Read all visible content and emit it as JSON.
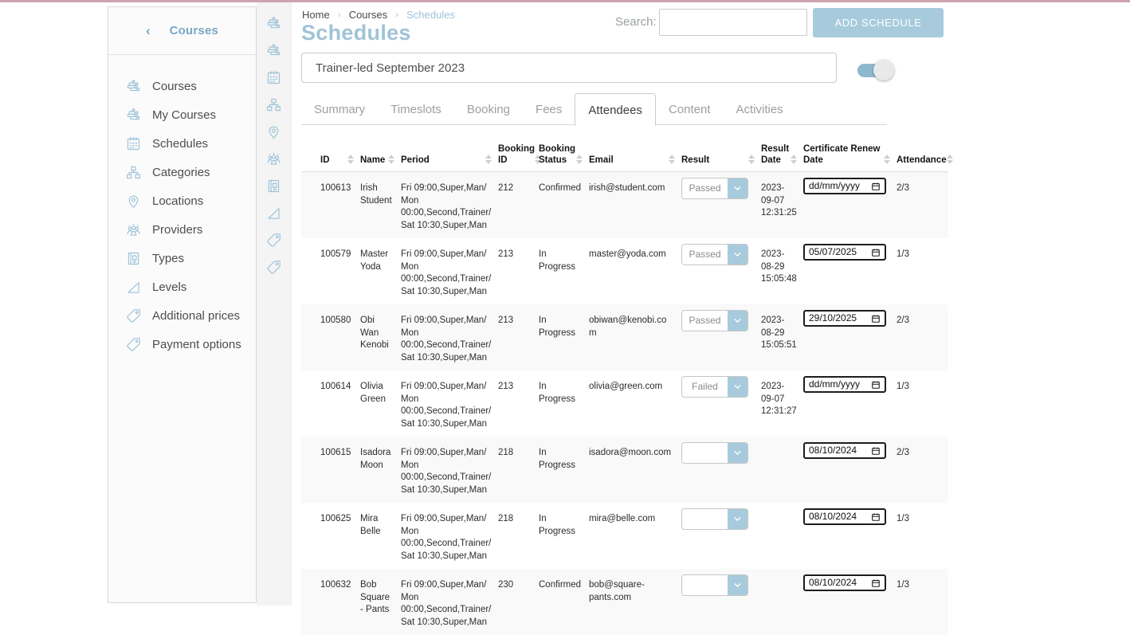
{
  "colors": {
    "accent_blue": "#a7cbdc",
    "title_blue": "#a0c3d7",
    "link_blue": "#79a7c6",
    "topbar_pink": "#cda4ae",
    "icon_blue": "#9cc2d8",
    "row_stripe": "#f9f9f9"
  },
  "sidebar": {
    "back_icon": "chevron-left-icon",
    "title": "Courses",
    "items": [
      {
        "label": "Courses",
        "icon": "courses-icon"
      },
      {
        "label": "My Courses",
        "icon": "my-courses-icon"
      },
      {
        "label": "Schedules",
        "icon": "schedules-icon"
      },
      {
        "label": "Categories",
        "icon": "categories-icon"
      },
      {
        "label": "Locations",
        "icon": "locations-icon"
      },
      {
        "label": "Providers",
        "icon": "providers-icon"
      },
      {
        "label": "Types",
        "icon": "types-icon"
      },
      {
        "label": "Levels",
        "icon": "levels-icon"
      },
      {
        "label": "Additional prices",
        "icon": "additional-prices-icon"
      },
      {
        "label": "Payment options",
        "icon": "payment-options-icon"
      }
    ]
  },
  "rail": {
    "icons": [
      "courses-icon",
      "my-courses-icon",
      "schedules-icon",
      "categories-icon",
      "locations-icon",
      "providers-icon",
      "types-icon",
      "levels-icon",
      "additional-prices-icon",
      "payment-options-icon"
    ]
  },
  "breadcrumb": {
    "items": [
      "Home",
      "Courses",
      "Schedules"
    ],
    "separator": "›"
  },
  "page": {
    "title": "Schedules"
  },
  "search": {
    "label": "Search:",
    "value": ""
  },
  "actions": {
    "add_schedule": "ADD SCHEDULE"
  },
  "schedule_field": {
    "value": "Trainer-led September 2023"
  },
  "toggle": {
    "state": "on"
  },
  "tabs": {
    "active": "Attendees",
    "items": [
      "Summary",
      "Timeslots",
      "Booking",
      "Fees",
      "Attendees",
      "Content",
      "Activities"
    ]
  },
  "table": {
    "date_placeholder": "dd/mm/yyyy",
    "columns": [
      "ID",
      "Name",
      "Period",
      "Booking ID",
      "Booking Status",
      "Email",
      "Result",
      "Result Date",
      "Certificate Renew Date",
      "Attendance"
    ],
    "rows": [
      {
        "id": "100613",
        "name": "Irish Student",
        "period": "Fri 09:00,Super,Man/ Mon 00:00,Second,Trainer/ Sat 10:30,Super,Man",
        "booking_id": "212",
        "booking_status": "Confirmed",
        "email": "irish@student.com",
        "result": "Passed",
        "result_date": "2023-09-07 12:31:25",
        "certificate_renew_date": "",
        "attendance": "2/3"
      },
      {
        "id": "100579",
        "name": "Master Yoda",
        "period": "Fri 09:00,Super,Man/ Mon 00:00,Second,Trainer/ Sat 10:30,Super,Man",
        "booking_id": "213",
        "booking_status": "In Progress",
        "email": "master@yoda.com",
        "result": "Passed",
        "result_date": "2023-08-29 15:05:48",
        "certificate_renew_date": "05/07/2025",
        "attendance": "1/3"
      },
      {
        "id": "100580",
        "name": "Obi Wan Kenobi",
        "period": "Fri 09:00,Super,Man/ Mon 00:00,Second,Trainer/ Sat 10:30,Super,Man",
        "booking_id": "213",
        "booking_status": "In Progress",
        "email": "obiwan@kenobi.com",
        "result": "Passed",
        "result_date": "2023-08-29 15:05:51",
        "certificate_renew_date": "29/10/2025",
        "attendance": "2/3"
      },
      {
        "id": "100614",
        "name": "Olivia Green",
        "period": "Fri 09:00,Super,Man/ Mon 00:00,Second,Trainer/ Sat 10:30,Super,Man",
        "booking_id": "213",
        "booking_status": "In Progress",
        "email": "olivia@green.com",
        "result": "Failed",
        "result_date": "2023-09-07 12:31:27",
        "certificate_renew_date": "",
        "attendance": "1/3"
      },
      {
        "id": "100615",
        "name": "Isadora Moon",
        "period": "Fri 09:00,Super,Man/ Mon 00:00,Second,Trainer/ Sat 10:30,Super,Man",
        "booking_id": "218",
        "booking_status": "In Progress",
        "email": "isadora@moon.com",
        "result": "",
        "result_date": "",
        "certificate_renew_date": "08/10/2024",
        "attendance": "2/3"
      },
      {
        "id": "100625",
        "name": "Mira Belle",
        "period": "Fri 09:00,Super,Man/ Mon 00:00,Second,Trainer/ Sat 10:30,Super,Man",
        "booking_id": "218",
        "booking_status": "In Progress",
        "email": "mira@belle.com",
        "result": "",
        "result_date": "",
        "certificate_renew_date": "08/10/2024",
        "attendance": "1/3"
      },
      {
        "id": "100632",
        "name": "Bob Square - Pants",
        "period": "Fri 09:00,Super,Man/ Mon 00:00,Second,Trainer/ Sat 10:30,Super,Man",
        "booking_id": "230",
        "booking_status": "Confirmed",
        "email": "bob@square-pants.com",
        "result": "",
        "result_date": "",
        "certificate_renew_date": "08/10/2024",
        "attendance": "1/3"
      }
    ]
  }
}
